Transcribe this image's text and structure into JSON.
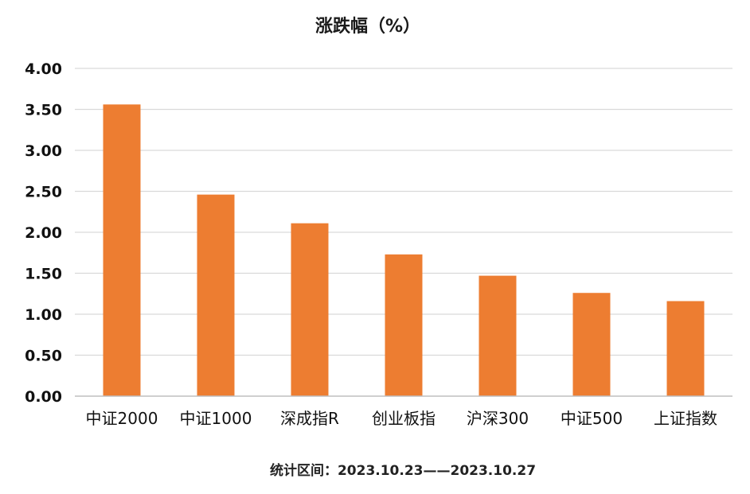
{
  "chart_data": {
    "type": "bar",
    "title": "涨跌幅（%）",
    "categories": [
      "中证2000",
      "中证1000",
      "深成指R",
      "创业板指",
      "沪深300",
      "中证500",
      "上证指数"
    ],
    "values": [
      3.56,
      2.46,
      2.11,
      1.73,
      1.47,
      1.26,
      1.16
    ],
    "ylim": [
      0,
      4
    ],
    "yticks": [
      "0.00",
      "0.50",
      "1.00",
      "1.50",
      "2.00",
      "2.50",
      "3.00",
      "3.50",
      "4.00"
    ],
    "grid": true,
    "legend": "none",
    "bar_color": "#ED7D31",
    "footnote": "统计区间：2023.10.23——2023.10.27"
  }
}
